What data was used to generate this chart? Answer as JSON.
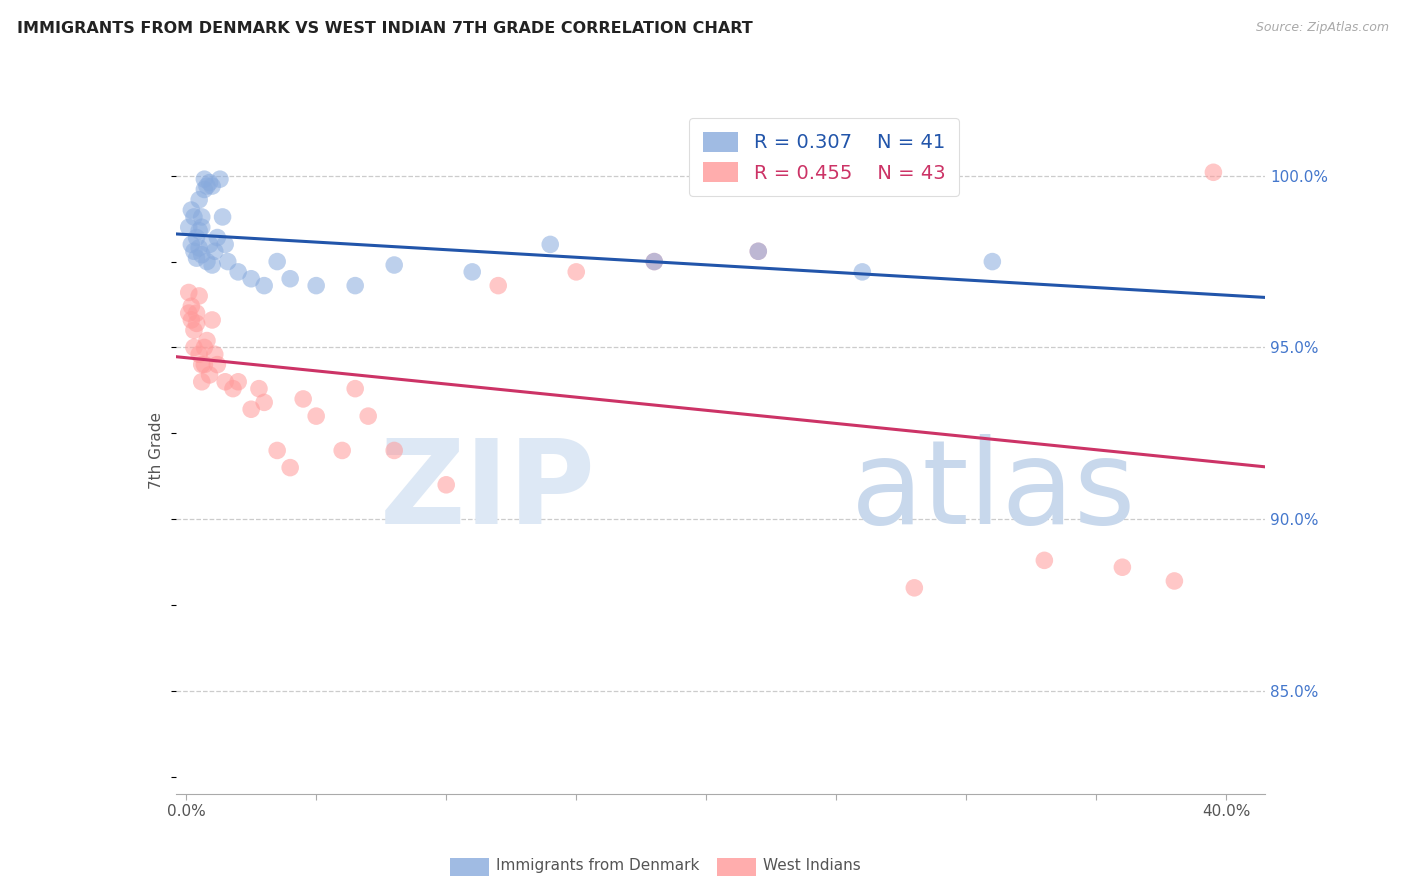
{
  "title": "IMMIGRANTS FROM DENMARK VS WEST INDIAN 7TH GRADE CORRELATION CHART",
  "source": "Source: ZipAtlas.com",
  "ylabel": "7th Grade",
  "ytick_labels": [
    "85.0%",
    "90.0%",
    "95.0%",
    "100.0%"
  ],
  "ytick_values": [
    0.85,
    0.9,
    0.95,
    1.0
  ],
  "ymin": 0.82,
  "ymax": 1.02,
  "xmin": -0.004,
  "xmax": 0.415,
  "legend_r_blue": "R = 0.307",
  "legend_n_blue": "N = 41",
  "legend_r_pink": "R = 0.455",
  "legend_n_pink": "N = 43",
  "blue_color": "#88AADD",
  "pink_color": "#FF9999",
  "trend_blue_color": "#2255AA",
  "trend_pink_color": "#CC3366",
  "blue_x": [
    0.001,
    0.002,
    0.002,
    0.003,
    0.003,
    0.004,
    0.004,
    0.005,
    0.005,
    0.005,
    0.006,
    0.006,
    0.006,
    0.007,
    0.007,
    0.008,
    0.008,
    0.009,
    0.009,
    0.01,
    0.01,
    0.011,
    0.012,
    0.013,
    0.014,
    0.015,
    0.016,
    0.02,
    0.025,
    0.03,
    0.035,
    0.04,
    0.05,
    0.065,
    0.08,
    0.11,
    0.14,
    0.18,
    0.22,
    0.26,
    0.31
  ],
  "blue_y": [
    0.985,
    0.98,
    0.99,
    0.978,
    0.988,
    0.982,
    0.976,
    0.984,
    0.979,
    0.993,
    0.977,
    0.985,
    0.988,
    0.996,
    0.999,
    0.997,
    0.975,
    0.998,
    0.98,
    0.997,
    0.974,
    0.978,
    0.982,
    0.999,
    0.988,
    0.98,
    0.975,
    0.972,
    0.97,
    0.968,
    0.975,
    0.97,
    0.968,
    0.968,
    0.974,
    0.972,
    0.98,
    0.975,
    0.978,
    0.972,
    0.975
  ],
  "pink_x": [
    0.001,
    0.001,
    0.002,
    0.002,
    0.003,
    0.003,
    0.004,
    0.004,
    0.005,
    0.005,
    0.006,
    0.006,
    0.007,
    0.007,
    0.008,
    0.009,
    0.01,
    0.011,
    0.012,
    0.015,
    0.018,
    0.02,
    0.025,
    0.028,
    0.03,
    0.035,
    0.04,
    0.045,
    0.05,
    0.06,
    0.065,
    0.07,
    0.08,
    0.1,
    0.12,
    0.15,
    0.18,
    0.22,
    0.28,
    0.33,
    0.36,
    0.38,
    0.395
  ],
  "pink_y": [
    0.966,
    0.96,
    0.962,
    0.958,
    0.955,
    0.95,
    0.957,
    0.96,
    0.948,
    0.965,
    0.945,
    0.94,
    0.95,
    0.945,
    0.952,
    0.942,
    0.958,
    0.948,
    0.945,
    0.94,
    0.938,
    0.94,
    0.932,
    0.938,
    0.934,
    0.92,
    0.915,
    0.935,
    0.93,
    0.92,
    0.938,
    0.93,
    0.92,
    0.91,
    0.968,
    0.972,
    0.975,
    0.978,
    0.88,
    0.888,
    0.886,
    0.882,
    1.001
  ]
}
